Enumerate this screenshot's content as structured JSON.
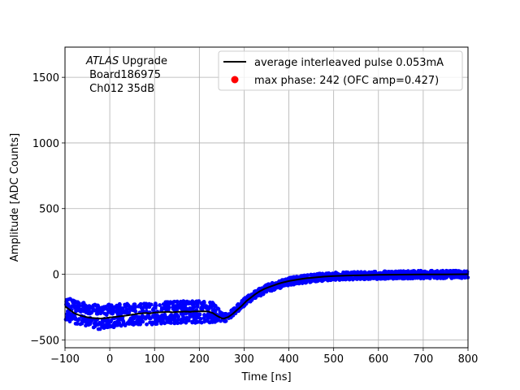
{
  "chart_data": {
    "type": "scatter",
    "title": "",
    "xlabel": "Time [ns]",
    "ylabel": "Amplitude [ADC Counts]",
    "xlim": [
      -100,
      800
    ],
    "ylim": [
      -560,
      1730
    ],
    "grid": true,
    "x_ticks": [
      -100,
      0,
      100,
      200,
      300,
      400,
      500,
      600,
      700,
      800
    ],
    "x_tick_labels": [
      "−100",
      "0",
      "100",
      "200",
      "300",
      "400",
      "500",
      "600",
      "700",
      "800"
    ],
    "y_ticks": [
      -500,
      0,
      500,
      1000,
      1500
    ],
    "y_tick_labels": [
      "−500",
      "0",
      "500",
      "1000",
      "1500"
    ],
    "annotation": {
      "line1_italic": "ATLAS",
      "line1_rest": " Upgrade",
      "line2": " Board186975",
      "line3": " Ch012 35dB"
    },
    "legend": {
      "placement": "upper right",
      "entries": [
        {
          "label": "average interleaved pulse 0.053mA",
          "color": "#000000",
          "marker": "line"
        },
        {
          "label": "max phase: 242 (OFC amp=0.427)",
          "color": "#ff0000",
          "marker": "dot"
        }
      ]
    },
    "series": [
      {
        "name": "average interleaved pulse 0.053mA",
        "kind": "line",
        "color": "#000000",
        "points": [
          [
            -100,
            -245
          ],
          [
            -90,
            -270
          ],
          [
            -80,
            -295
          ],
          [
            -70,
            -310
          ],
          [
            -60,
            -320
          ],
          [
            -50,
            -328
          ],
          [
            -40,
            -333
          ],
          [
            -30,
            -336
          ],
          [
            -20,
            -337
          ],
          [
            -10,
            -334
          ],
          [
            0,
            -330
          ],
          [
            10,
            -326
          ],
          [
            20,
            -322
          ],
          [
            30,
            -318
          ],
          [
            40,
            -313
          ],
          [
            50,
            -308
          ],
          [
            60,
            -302
          ],
          [
            70,
            -298
          ],
          [
            80,
            -296
          ],
          [
            90,
            -298
          ],
          [
            100,
            -292
          ],
          [
            110,
            -290
          ],
          [
            120,
            -288
          ],
          [
            130,
            -286
          ],
          [
            140,
            -290
          ],
          [
            150,
            -287
          ],
          [
            160,
            -285
          ],
          [
            170,
            -284
          ],
          [
            180,
            -286
          ],
          [
            190,
            -283
          ],
          [
            200,
            -283
          ],
          [
            210,
            -282
          ],
          [
            220,
            -284
          ],
          [
            230,
            -296
          ],
          [
            240,
            -318
          ],
          [
            250,
            -336
          ],
          [
            255,
            -338
          ],
          [
            265,
            -325
          ],
          [
            275,
            -300
          ],
          [
            285,
            -270
          ],
          [
            295,
            -240
          ],
          [
            305,
            -205
          ],
          [
            315,
            -178
          ],
          [
            325,
            -152
          ],
          [
            335,
            -130
          ],
          [
            345,
            -112
          ],
          [
            355,
            -98
          ],
          [
            365,
            -86
          ],
          [
            375,
            -74
          ],
          [
            385,
            -64
          ],
          [
            400,
            -52
          ],
          [
            420,
            -40
          ],
          [
            440,
            -30
          ],
          [
            460,
            -24
          ],
          [
            480,
            -18
          ],
          [
            500,
            -14
          ],
          [
            530,
            -10
          ],
          [
            560,
            -7
          ],
          [
            600,
            -5
          ],
          [
            650,
            -3
          ],
          [
            700,
            -2
          ],
          [
            750,
            -1
          ],
          [
            800,
            0
          ]
        ]
      },
      {
        "name": "samples",
        "kind": "scatter-band",
        "color": "#0000ff",
        "band_points": [
          [
            -100,
            -260,
            150
          ],
          [
            -80,
            -290,
            140
          ],
          [
            -60,
            -300,
            140
          ],
          [
            -40,
            -320,
            145
          ],
          [
            -20,
            -330,
            150
          ],
          [
            0,
            -320,
            145
          ],
          [
            50,
            -305,
            130
          ],
          [
            100,
            -300,
            135
          ],
          [
            150,
            -290,
            135
          ],
          [
            200,
            -285,
            135
          ],
          [
            230,
            -295,
            125
          ],
          [
            250,
            -325,
            60
          ],
          [
            262,
            -330,
            40
          ],
          [
            280,
            -275,
            40
          ],
          [
            300,
            -215,
            45
          ],
          [
            320,
            -165,
            45
          ],
          [
            350,
            -110,
            45
          ],
          [
            400,
            -55,
            45
          ],
          [
            450,
            -30,
            45
          ],
          [
            500,
            -15,
            45
          ],
          [
            600,
            -8,
            45
          ],
          [
            700,
            -3,
            45
          ],
          [
            800,
            0,
            45
          ]
        ]
      },
      {
        "name": "max phase: 242 (OFC amp=0.427)",
        "kind": "marker",
        "color": "#ff0000",
        "points": []
      }
    ]
  }
}
